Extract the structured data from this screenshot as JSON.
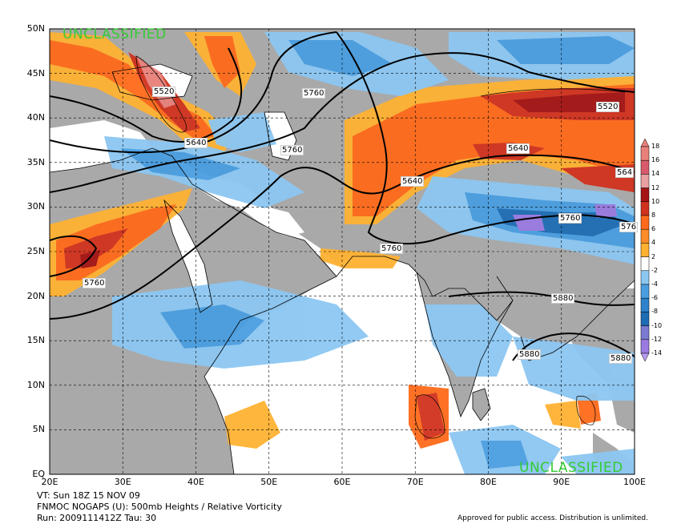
{
  "map": {
    "lat_labels": [
      "50N",
      "45N",
      "40N",
      "35N",
      "30N",
      "25N",
      "20N",
      "15N",
      "10N",
      "5N",
      "EQ"
    ],
    "lon_labels": [
      "20E",
      "30E",
      "40E",
      "50E",
      "60E",
      "70E",
      "80E",
      "90E",
      "100E"
    ],
    "classification_top": "UNCLASSIFIED",
    "classification_bottom": "UNCLASSIFIED",
    "contour_labels": [
      "5520",
      "5640",
      "5760",
      "5760",
      "5760",
      "5640",
      "5640",
      "5520",
      "5640",
      "5760",
      "5760",
      "5760",
      "5880",
      "5880",
      "5880",
      "564",
      "576"
    ],
    "colors": {
      "land": "#a9a9a9",
      "ocean": "#ffffff",
      "pos_low": "#ffb232",
      "pos_mid": "#ff6a1a",
      "pos_high": "#d0321e",
      "pos_max": "#a41414",
      "neg_low": "#8cc7f2",
      "neg_mid": "#4a9ee0",
      "neg_high": "#1e6cb4",
      "neg_max": "#9a7ae0",
      "unclass": "#33cc33"
    }
  },
  "colorbar": {
    "ticks": [
      "18",
      "16",
      "14",
      "12",
      "10",
      "8",
      "6",
      "4",
      "2",
      "-2",
      "-4",
      "-6",
      "-8",
      "-10",
      "-12",
      "-14"
    ]
  },
  "footer": {
    "line1": "VT: Sun 18Z 15 NOV 09",
    "line2": "FNMOC NOGAPS (U): 500mb Heights / Relative Vorticity",
    "line3": "Run: 2009111412Z Tau: 30",
    "approval": "Approved for public access. Distribution is unlimited."
  }
}
